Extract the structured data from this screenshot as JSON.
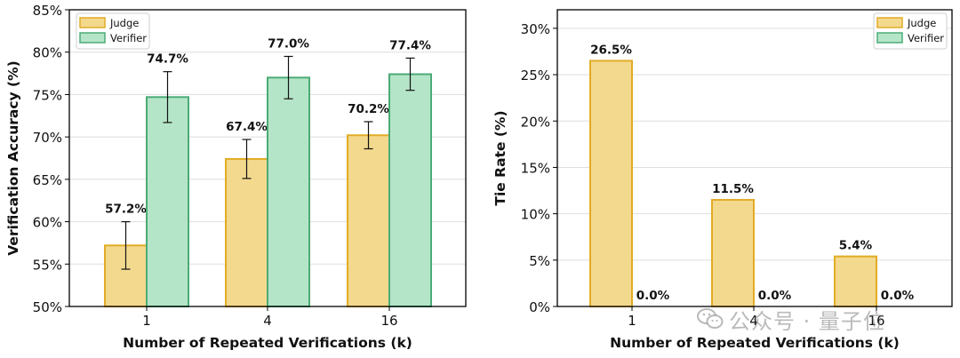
{
  "colors": {
    "judge_fill": "#f3d98e",
    "judge_edge": "#e1ac26",
    "verifier_fill": "#b5e5c8",
    "verifier_edge": "#4bab77",
    "grid": "#dedede",
    "axis": "#000000"
  },
  "chart_data": [
    {
      "type": "bar",
      "title": "",
      "xlabel": "Number of Repeated Verifications (k)",
      "ylabel": "Verification Accuracy (%)",
      "categories": [
        "1",
        "4",
        "16"
      ],
      "ylim": [
        50,
        85
      ],
      "yticks": [
        50,
        55,
        60,
        65,
        70,
        75,
        80,
        85
      ],
      "ytick_labels": [
        "50%",
        "55%",
        "60%",
        "65%",
        "70%",
        "75%",
        "80%",
        "85%"
      ],
      "grid": true,
      "legend": "top-left",
      "series": [
        {
          "name": "Judge",
          "values": [
            57.2,
            67.4,
            70.2
          ],
          "errors": [
            2.8,
            2.3,
            1.6
          ],
          "labels": [
            "57.2%",
            "67.4%",
            "70.2%"
          ]
        },
        {
          "name": "Verifier",
          "values": [
            74.7,
            77.0,
            77.4
          ],
          "errors": [
            3.0,
            2.5,
            1.9
          ],
          "labels": [
            "74.7%",
            "77.0%",
            "77.4%"
          ]
        }
      ]
    },
    {
      "type": "bar",
      "title": "",
      "xlabel": "Number of Repeated Verifications (k)",
      "ylabel": "Tie Rate (%)",
      "categories": [
        "1",
        "4",
        "16"
      ],
      "ylim": [
        0,
        32
      ],
      "yticks": [
        0,
        5,
        10,
        15,
        20,
        25,
        30
      ],
      "ytick_labels": [
        "0%",
        "5%",
        "10%",
        "15%",
        "20%",
        "25%",
        "30%"
      ],
      "grid": true,
      "legend": "top-right",
      "series": [
        {
          "name": "Judge",
          "values": [
            26.5,
            11.5,
            5.4
          ],
          "errors": null,
          "labels": [
            "26.5%",
            "11.5%",
            "5.4%"
          ]
        },
        {
          "name": "Verifier",
          "values": [
            0.0,
            0.0,
            0.0
          ],
          "errors": null,
          "labels": [
            "0.0%",
            "0.0%",
            "0.0%"
          ]
        }
      ]
    }
  ],
  "watermark": {
    "text": "公众号 · 量子位"
  }
}
